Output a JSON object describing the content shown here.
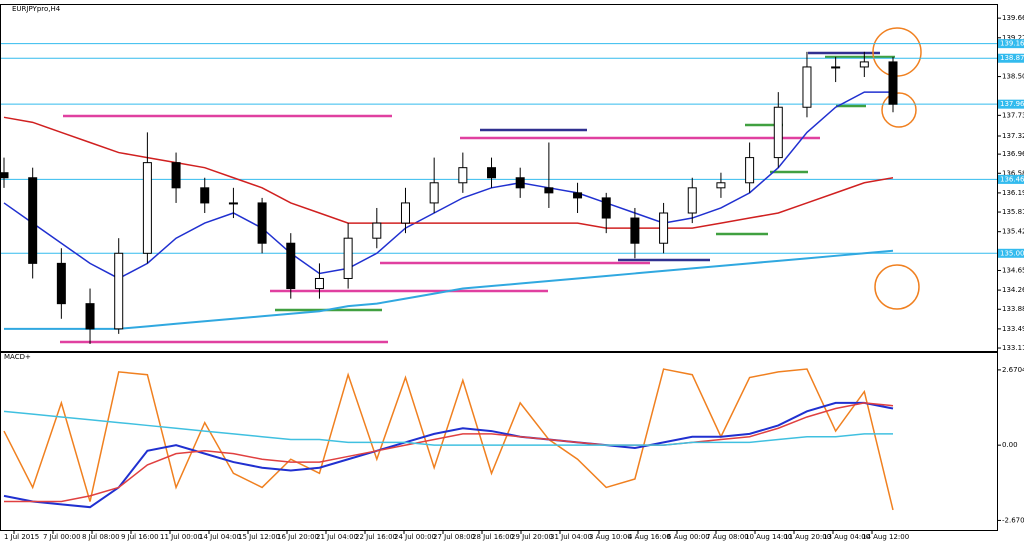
{
  "chart_data": {
    "type": "candlestick",
    "title": "EURJPYpro,H4",
    "ylim": [
      133.06,
      139.93
    ],
    "yticks": [
      133.119,
      133.499,
      133.889,
      134.269,
      134.659,
      135.429,
      135.819,
      136.199,
      136.589,
      136.969,
      137.329,
      137.739,
      138.509,
      139.279,
      139.669
    ],
    "xlabels": [
      "1 Jul 2015",
      "7 Jul 00:00",
      "8 Jul 08:00",
      "9 Jul 16:00",
      "11 Jul 00:00",
      "14 Jul 04:00",
      "15 Jul 12:00",
      "16 Jul 20:00",
      "21 Jul 04:00",
      "22 Jul 16:00",
      "24 Jul 00:00",
      "27 Jul 08:00",
      "28 Jul 16:00",
      "29 Jul 20:00",
      "31 Jul 04:00",
      "3 Aug 10:00",
      "4 Aug 16:00",
      "6 Aug 00:00",
      "7 Aug 08:00",
      "10 Aug 14:00",
      "11 Aug 20:00",
      "13 Aug 04:00",
      "14 Aug 12:00"
    ],
    "open": [
      136.6,
      136.5,
      134.8,
      134.0,
      133.5,
      135.0,
      136.8,
      136.3,
      136.0,
      136.0,
      135.2,
      134.3,
      134.5,
      135.3,
      135.6,
      136.0,
      136.4,
      136.7,
      136.5,
      136.3,
      136.2,
      136.1,
      135.7,
      135.2,
      135.8,
      136.3,
      136.4,
      136.9,
      137.9,
      138.7,
      138.7,
      138.8
    ],
    "high": [
      136.9,
      136.7,
      135.1,
      134.3,
      135.3,
      137.4,
      137.0,
      136.5,
      136.3,
      136.1,
      135.4,
      134.8,
      135.6,
      135.9,
      136.3,
      136.9,
      137.0,
      136.9,
      136.7,
      137.2,
      136.4,
      136.2,
      135.9,
      136.0,
      136.5,
      136.6,
      137.2,
      138.2,
      139.0,
      138.9,
      139.0,
      138.9
    ],
    "low": [
      136.3,
      134.5,
      133.7,
      133.2,
      133.4,
      134.8,
      136.0,
      135.8,
      135.7,
      135.0,
      134.1,
      134.1,
      134.3,
      135.1,
      135.4,
      135.8,
      136.2,
      136.3,
      136.1,
      135.9,
      135.8,
      135.4,
      134.9,
      135.0,
      135.6,
      136.1,
      136.2,
      136.7,
      137.7,
      138.4,
      138.5,
      137.8
    ],
    "close": [
      136.5,
      134.8,
      134.0,
      133.5,
      135.0,
      136.8,
      136.3,
      136.0,
      136.0,
      135.2,
      134.3,
      134.5,
      135.3,
      135.6,
      136.0,
      136.4,
      136.7,
      136.5,
      136.3,
      136.2,
      136.1,
      135.7,
      135.2,
      135.8,
      136.3,
      136.4,
      136.9,
      137.9,
      138.7,
      138.7,
      138.8,
      137.96
    ],
    "lines": [
      {
        "color": "#2030d0",
        "values": [
          136.0,
          135.6,
          135.2,
          134.8,
          134.5,
          134.8,
          135.3,
          135.6,
          135.8,
          135.5,
          135.0,
          134.6,
          134.7,
          135.0,
          135.5,
          135.8,
          136.1,
          136.3,
          136.4,
          136.3,
          136.2,
          136.0,
          135.8,
          135.6,
          135.7,
          135.9,
          136.2,
          136.7,
          137.4,
          137.9,
          138.2,
          138.2
        ]
      },
      {
        "color": "#d02020",
        "values": [
          137.7,
          137.6,
          137.4,
          137.2,
          137.0,
          136.9,
          136.8,
          136.7,
          136.5,
          136.3,
          136.0,
          135.8,
          135.6,
          135.6,
          135.6,
          135.6,
          135.6,
          135.6,
          135.6,
          135.6,
          135.6,
          135.5,
          135.5,
          135.5,
          135.5,
          135.6,
          135.7,
          135.8,
          136.0,
          136.2,
          136.4,
          136.5
        ]
      },
      {
        "color": "#30a8e0",
        "values": [
          133.5,
          133.5,
          133.5,
          133.5,
          133.5,
          133.55,
          133.6,
          133.65,
          133.7,
          133.75,
          133.8,
          133.85,
          133.95,
          134.0,
          134.1,
          134.2,
          134.3,
          134.35,
          134.4,
          134.45,
          134.5,
          134.55,
          134.6,
          134.65,
          134.7,
          134.75,
          134.8,
          134.85,
          134.9,
          134.95,
          135.0,
          135.05
        ]
      }
    ],
    "levels": [
      139.163,
      138.873,
      137.961,
      136.467,
      {
        "value": 135.0,
        "label": "135.000"
      }
    ],
    "level_color": "#33bbee",
    "indicator": {
      "title": "MACD+",
      "ylim": [
        -3.01,
        3.27
      ],
      "yticks": [
        -2.6704,
        {
          "value": 0,
          "label": "0.00"
        },
        2.6704
      ],
      "lines": [
        {
          "color": "#f08020",
          "values": [
            0.5,
            -1.5,
            1.5,
            -2.0,
            2.6,
            2.5,
            -1.5,
            0.8,
            -1.0,
            -1.5,
            -0.5,
            -1.0,
            2.5,
            -0.5,
            2.4,
            -0.8,
            2.3,
            -1.0,
            1.5,
            0.2,
            -0.5,
            -1.5,
            -1.2,
            2.7,
            2.5,
            0.3,
            2.4,
            2.6,
            2.7,
            0.5,
            1.9,
            -2.3
          ]
        },
        {
          "color": "#2030d0",
          "values": [
            -1.8,
            -2.0,
            -2.1,
            -2.2,
            -1.5,
            -0.2,
            0.0,
            -0.3,
            -0.6,
            -0.8,
            -0.9,
            -0.8,
            -0.5,
            -0.2,
            0.1,
            0.4,
            0.6,
            0.5,
            0.3,
            0.2,
            0.1,
            0.0,
            -0.1,
            0.1,
            0.3,
            0.3,
            0.4,
            0.7,
            1.2,
            1.5,
            1.5,
            1.3
          ]
        },
        {
          "color": "#e04040",
          "values": [
            -2.0,
            -2.0,
            -2.0,
            -1.8,
            -1.5,
            -0.7,
            -0.3,
            -0.2,
            -0.3,
            -0.5,
            -0.6,
            -0.6,
            -0.4,
            -0.2,
            0.0,
            0.2,
            0.4,
            0.4,
            0.3,
            0.2,
            0.1,
            0.0,
            0.0,
            0.0,
            0.1,
            0.2,
            0.3,
            0.6,
            1.0,
            1.3,
            1.5,
            1.4
          ]
        },
        {
          "color": "#40c0e0",
          "values": [
            1.2,
            1.1,
            1.0,
            0.9,
            0.8,
            0.7,
            0.6,
            0.5,
            0.4,
            0.3,
            0.2,
            0.2,
            0.1,
            0.1,
            0.1,
            0.0,
            0.0,
            0.0,
            0.0,
            0.0,
            0.0,
            0.0,
            0.0,
            0.0,
            0.1,
            0.1,
            0.1,
            0.2,
            0.3,
            0.3,
            0.4,
            0.4
          ]
        }
      ]
    }
  }
}
